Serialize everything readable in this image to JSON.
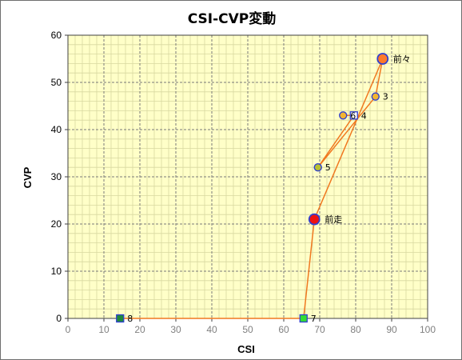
{
  "chart_data": {
    "type": "scatter",
    "title": "CSI-CVP変動",
    "xlabel": "CSI",
    "ylabel": "CVP",
    "xlim": [
      0,
      100
    ],
    "ylim": [
      0,
      60
    ],
    "x_ticks": [
      0,
      10,
      20,
      30,
      40,
      50,
      60,
      70,
      80,
      90,
      100
    ],
    "y_ticks": [
      0,
      10,
      20,
      30,
      40,
      50,
      60
    ],
    "grid": true,
    "colors": {
      "plot_bg": "#ffffc8",
      "line": "#f07820",
      "marker_edge": "#3040d0",
      "major_grid": "#7a7a7a",
      "minor_grid": "#d8d8a0"
    },
    "connection_order": [
      "8",
      "7",
      "前走",
      "前々",
      "3",
      "5",
      "4",
      "6"
    ],
    "points": [
      {
        "label": "8",
        "x": 14.5,
        "y": 0,
        "marker": "square",
        "fill": "#1f8a3a",
        "size": "small"
      },
      {
        "label": "7",
        "x": 65.5,
        "y": 0,
        "marker": "square",
        "fill": "#33dd33",
        "size": "small"
      },
      {
        "label": "前走",
        "x": 68.5,
        "y": 21,
        "marker": "circle",
        "fill": "#ee1111",
        "size": "large"
      },
      {
        "label": "前々",
        "x": 87.5,
        "y": 55,
        "marker": "circle",
        "fill": "#ff7a2a",
        "size": "large"
      },
      {
        "label": "3",
        "x": 85.5,
        "y": 47,
        "marker": "circle",
        "fill": "#f2b430",
        "size": "small"
      },
      {
        "label": "5",
        "x": 69.5,
        "y": 32,
        "marker": "circle",
        "fill": "#b8c030",
        "size": "small"
      },
      {
        "label": "4",
        "x": 79.5,
        "y": 43,
        "marker": "square",
        "fill": "#ffffff",
        "size": "small"
      },
      {
        "label": "6",
        "x": 76.5,
        "y": 43,
        "marker": "circle",
        "fill": "#f2b430",
        "size": "small"
      }
    ]
  }
}
